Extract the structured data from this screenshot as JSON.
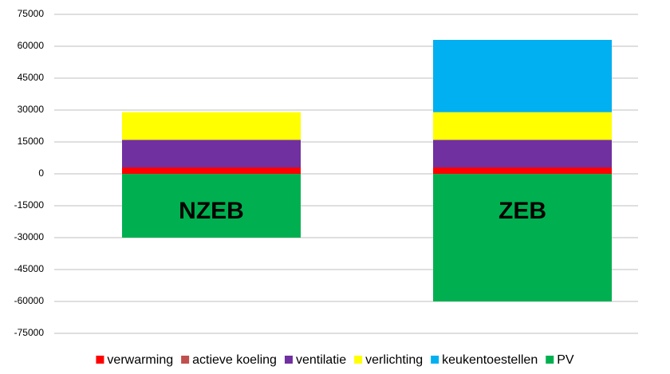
{
  "chart_data": {
    "type": "stacked_bar",
    "categories": [
      "NZEB",
      "ZEB"
    ],
    "series": [
      {
        "name": "verwarming",
        "color": "#ff0000",
        "values": [
          3000,
          3000
        ]
      },
      {
        "name": "actieve koeling",
        "color": "#c0504d",
        "values": [
          0,
          0
        ]
      },
      {
        "name": "ventilatie",
        "color": "#7030a0",
        "values": [
          13000,
          13000
        ]
      },
      {
        "name": "verlichting",
        "color": "#ffff00",
        "values": [
          13000,
          13000
        ]
      },
      {
        "name": "keukentoestellen",
        "color": "#00b0f0",
        "values": [
          0,
          34000
        ]
      },
      {
        "name": "PV",
        "color": "#00b050",
        "values": [
          -30000,
          -60000
        ]
      }
    ],
    "ylim": [
      -75000,
      75000
    ],
    "yticks": [
      -75000,
      -60000,
      -45000,
      -30000,
      -15000,
      0,
      15000,
      30000,
      45000,
      60000,
      75000
    ],
    "grid": true,
    "legend": "bottom"
  }
}
